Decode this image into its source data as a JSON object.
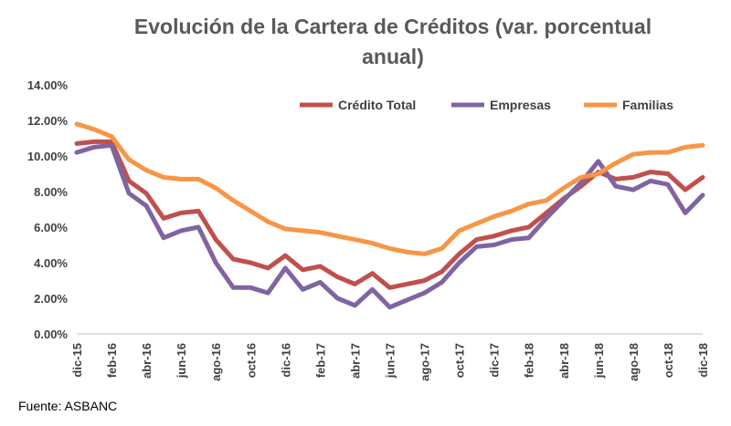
{
  "chart_data": {
    "type": "line",
    "title_line1": "Evolución de la Cartera de Créditos (var. porcentual",
    "title_line2": "anual)",
    "y_ticks": [
      "0.00%",
      "2.00%",
      "4.00%",
      "6.00%",
      "8.00%",
      "10.00%",
      "12.00%",
      "14.00%"
    ],
    "ylim": [
      0,
      14
    ],
    "x_tick_labels": [
      "dic-15",
      "feb-16",
      "abr-16",
      "jun-16",
      "ago-16",
      "oct-16",
      "dic-16",
      "feb-17",
      "abr-17",
      "jun-17",
      "ago-17",
      "oct-17",
      "dic-17",
      "feb-18",
      "abr-18",
      "jun-18",
      "ago-18",
      "oct-18",
      "dic-18"
    ],
    "x": [
      "dic-15",
      "ene-16",
      "feb-16",
      "mar-16",
      "abr-16",
      "may-16",
      "jun-16",
      "jul-16",
      "ago-16",
      "sep-16",
      "oct-16",
      "nov-16",
      "dic-16",
      "ene-17",
      "feb-17",
      "mar-17",
      "abr-17",
      "may-17",
      "jun-17",
      "jul-17",
      "ago-17",
      "sep-17",
      "oct-17",
      "nov-17",
      "dic-17",
      "ene-18",
      "feb-18",
      "mar-18",
      "abr-18",
      "may-18",
      "jun-18",
      "jul-18",
      "ago-18",
      "sep-18",
      "oct-18",
      "nov-18",
      "dic-18"
    ],
    "grid": false,
    "legend_position": "top-right",
    "series": [
      {
        "name": "Crédito Total",
        "color": "#c0504d",
        "values": [
          10.7,
          10.8,
          10.8,
          8.6,
          7.9,
          6.5,
          6.8,
          6.9,
          5.3,
          4.2,
          4.0,
          3.7,
          4.4,
          3.6,
          3.8,
          3.2,
          2.8,
          3.4,
          2.6,
          2.8,
          3.0,
          3.5,
          4.5,
          5.3,
          5.5,
          5.8,
          6.0,
          6.8,
          7.6,
          8.3,
          9.1,
          8.7,
          8.8,
          9.1,
          9.0,
          8.1,
          8.8
        ]
      },
      {
        "name": "Empresas",
        "color": "#8064a2",
        "values": [
          10.2,
          10.5,
          10.6,
          7.9,
          7.2,
          5.4,
          5.8,
          6.0,
          4.0,
          2.6,
          2.6,
          2.3,
          3.7,
          2.5,
          2.9,
          2.0,
          1.6,
          2.5,
          1.5,
          1.9,
          2.3,
          2.9,
          4.0,
          4.9,
          5.0,
          5.3,
          5.4,
          6.5,
          7.5,
          8.5,
          9.7,
          8.3,
          8.1,
          8.6,
          8.4,
          6.8,
          7.8
        ]
      },
      {
        "name": "Familias",
        "color": "#f79646",
        "values": [
          11.8,
          11.5,
          11.1,
          9.8,
          9.2,
          8.8,
          8.7,
          8.7,
          8.2,
          7.5,
          6.9,
          6.3,
          5.9,
          5.8,
          5.7,
          5.5,
          5.3,
          5.1,
          4.8,
          4.6,
          4.5,
          4.8,
          5.8,
          6.2,
          6.6,
          6.9,
          7.3,
          7.5,
          8.2,
          8.8,
          9.0,
          9.6,
          10.1,
          10.2,
          10.2,
          10.5,
          10.6
        ]
      }
    ]
  },
  "source": "Fuente: ASBANC"
}
